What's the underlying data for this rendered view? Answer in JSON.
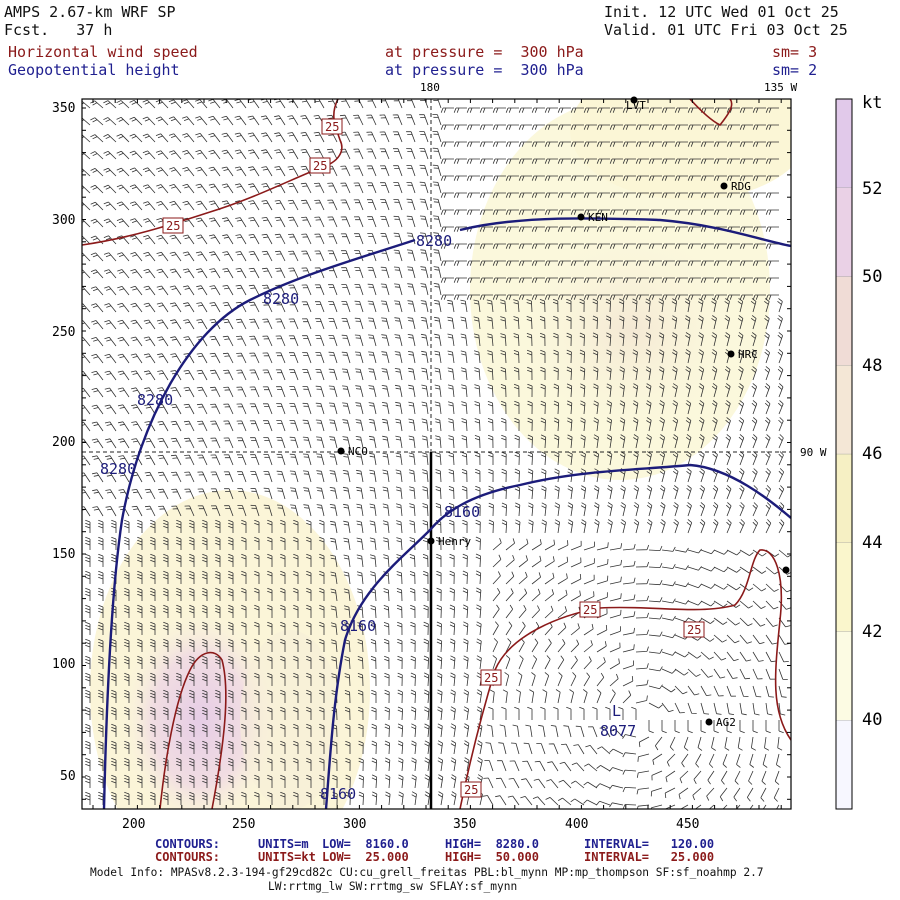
{
  "header": {
    "model": "AMPS 2.67-km WRF SP",
    "fcst": "Fcst.   37 h",
    "init": "Init. 12 UTC Wed 01 Oct 25",
    "valid": "Valid. 01 UTC Fri 03 Oct 25",
    "field1_name": "Horizontal wind speed",
    "field1_level": "at pressure =  300 hPa",
    "field1_sm": "sm= 3",
    "field2_name": "Geopotential height",
    "field2_level": "at pressure =  300 hPa",
    "field2_sm": "sm= 2"
  },
  "map": {
    "lon_label_top": "180",
    "lon_label_top_right": "135 W",
    "lon_label_right": "90 W",
    "x_ticks": [
      "200",
      "250",
      "300",
      "350",
      "400",
      "450"
    ],
    "y_ticks": [
      "350",
      "300",
      "250",
      "200",
      "150",
      "100",
      "50"
    ],
    "stations": [
      "LVT",
      "RDG",
      "KEN",
      "HRC",
      "NCO",
      "Henry",
      "AG2"
    ],
    "height_labels": [
      "8280",
      "8280",
      "8280",
      "8280",
      "8160",
      "8160",
      "8160",
      "8077"
    ],
    "low_marker": "L",
    "speed_labels": [
      "25",
      "25",
      "25",
      "25",
      "25",
      "25",
      "25"
    ]
  },
  "colorbar": {
    "unit": "kt",
    "ticks": [
      "52",
      "50",
      "48",
      "46",
      "44",
      "42",
      "40"
    ],
    "colors": [
      "#f7f7ff",
      "#fcfbe3",
      "#faf6cc",
      "#f6f0c4",
      "#f4e7d6",
      "#f0dcd6",
      "#ead1e6",
      "#e1c9ea"
    ]
  },
  "footer": {
    "line1_contours": "CONTOURS:",
    "line1_units": "UNITS=m",
    "line1_low": "LOW=  8160.0",
    "line1_high": "HIGH=  8280.0",
    "line1_interval": "INTERVAL=   120.00",
    "line2_contours": "CONTOURS:",
    "line2_units": "UNITS=kt",
    "line2_low": "LOW=  25.000",
    "line2_high": "HIGH=  50.000",
    "line2_interval": "INTERVAL=   25.000",
    "model_info": "Model Info: MPASv8.2.3-194-gf29cd82c CU:cu_grell_freitas PBL:bl_mynn MP:mp_thompson SF:sf_noahmp 2.7",
    "model_info2": "LW:rrtmg_lw SW:rrtmg_sw SFLAY:sf_mynn"
  }
}
